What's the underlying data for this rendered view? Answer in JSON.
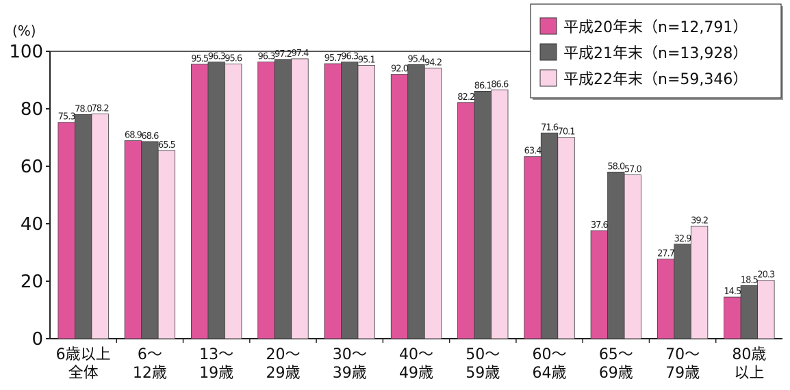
{
  "chart_data": {
    "type": "bar",
    "ylabel": "(%)",
    "ylim": [
      0,
      100
    ],
    "yticks": [
      "0",
      "20",
      "40",
      "60",
      "80",
      "100"
    ],
    "grid": false,
    "legend_position": "top-right",
    "categories": [
      [
        "6歳以上",
        "全体"
      ],
      [
        "6〜",
        "12歳"
      ],
      [
        "13〜",
        "19歳"
      ],
      [
        "20〜",
        "29歳"
      ],
      [
        "30〜",
        "39歳"
      ],
      [
        "40〜",
        "49歳"
      ],
      [
        "50〜",
        "59歳"
      ],
      [
        "60〜",
        "64歳"
      ],
      [
        "65〜",
        "69歳"
      ],
      [
        "70〜",
        "79歳"
      ],
      [
        "80歳",
        "以上"
      ]
    ],
    "series": [
      {
        "name": "平成20年末（n=12,791）",
        "color": "#e0559a",
        "values": [
          75.3,
          68.9,
          95.5,
          96.3,
          95.7,
          92.0,
          82.2,
          63.4,
          37.6,
          27.7,
          14.5
        ],
        "labels": [
          "75.3",
          "68.9",
          "95.5",
          "96.3",
          "95.7",
          "92.0",
          "82.2",
          "63.4",
          "37.6",
          "27.7",
          "14.5"
        ]
      },
      {
        "name": "平成21年末（n=13,928）",
        "color": "#636363",
        "values": [
          78.0,
          68.6,
          96.3,
          97.2,
          96.3,
          95.4,
          86.1,
          71.6,
          58.0,
          32.9,
          18.5
        ],
        "labels": [
          "78.0",
          "68.6",
          "96.3",
          "97.2",
          "96.3",
          "95.4",
          "86.1",
          "71.6",
          "58.0",
          "32.9",
          "18.5"
        ]
      },
      {
        "name": "平成22年末（n=59,346）",
        "color": "#fad3e6",
        "values": [
          78.2,
          65.5,
          95.6,
          97.4,
          95.1,
          94.2,
          86.6,
          70.1,
          57.0,
          39.2,
          20.3
        ],
        "labels": [
          "78.2",
          "65.5",
          "95.6",
          "97.4",
          "95.1",
          "94.2",
          "86.6",
          "70.1",
          "57.0",
          "39.2",
          "20.3"
        ]
      }
    ]
  }
}
